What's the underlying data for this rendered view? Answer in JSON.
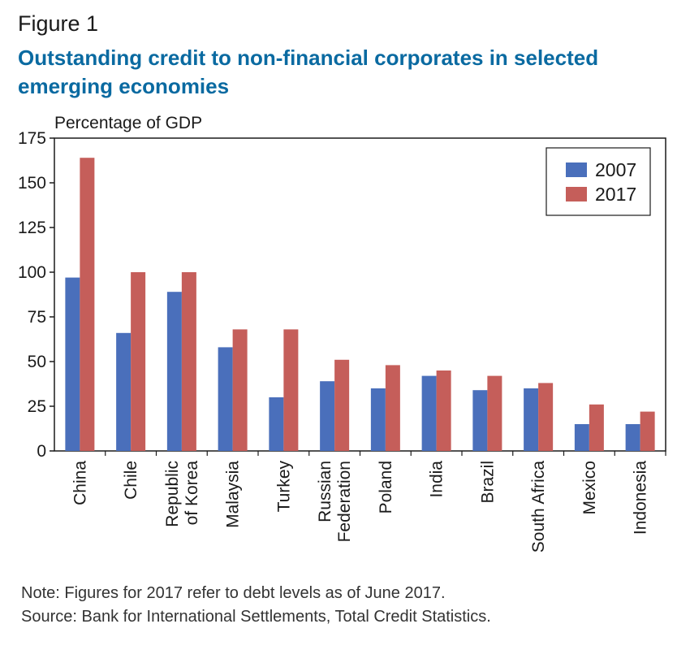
{
  "figure": {
    "label": "Figure 1",
    "title": "Outstanding credit to non-financial corporates in selected emerging economies",
    "note": "Note: Figures for 2017 refer to debt levels as of June 2017.",
    "source": "Source: Bank for International Settlements, Total Credit Statistics."
  },
  "chart_data": {
    "type": "bar",
    "ylabel": "Percentage of GDP",
    "xlabel": "",
    "ylim": [
      0,
      175
    ],
    "yticks": [
      0,
      25,
      50,
      75,
      100,
      125,
      150,
      175
    ],
    "grid": false,
    "legend_position": "top-right",
    "categories": [
      [
        "China"
      ],
      [
        "Chile"
      ],
      [
        "Republic",
        "of Korea"
      ],
      [
        "Malaysia"
      ],
      [
        "Turkey"
      ],
      [
        "Russian",
        "Federation"
      ],
      [
        "Poland"
      ],
      [
        "India"
      ],
      [
        "Brazil"
      ],
      [
        "South Africa"
      ],
      [
        "Mexico"
      ],
      [
        "Indonesia"
      ]
    ],
    "series": [
      {
        "name": "2007",
        "color": "#4a6fbb",
        "values": [
          97,
          66,
          89,
          58,
          30,
          39,
          35,
          42,
          34,
          35,
          15,
          15
        ]
      },
      {
        "name": "2017",
        "color": "#c55e5a",
        "values": [
          164,
          100,
          100,
          68,
          68,
          51,
          48,
          45,
          42,
          38,
          26,
          22
        ]
      }
    ]
  }
}
